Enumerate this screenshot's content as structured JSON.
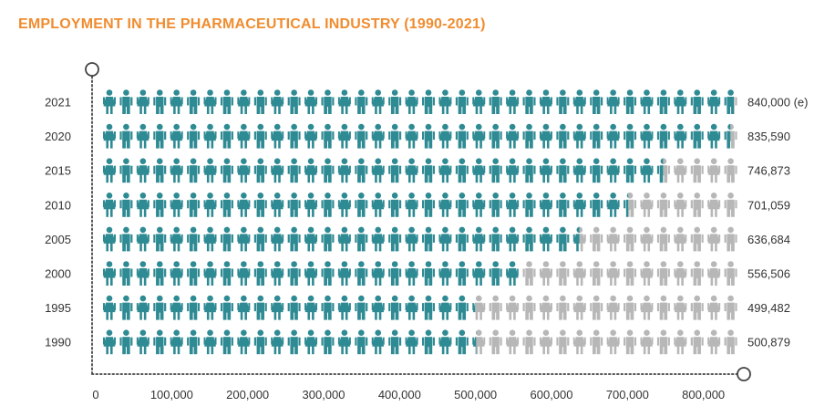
{
  "chart_data": {
    "type": "bar",
    "title": "EMPLOYMENT IN THE PHARMACEUTICAL INDUSTRY (1990-2021)",
    "title_color": "#f08c2f",
    "colors": {
      "filled": "#2e8a93",
      "empty": "#b7b7b7",
      "axis": "#555555"
    },
    "orientation": "horizontal",
    "categories": [
      "2021",
      "2020",
      "2015",
      "2010",
      "2005",
      "2000",
      "1995",
      "1990"
    ],
    "values": [
      840000,
      835590,
      746873,
      701059,
      636684,
      556506,
      499482,
      500879
    ],
    "value_labels": [
      "840,000 (e)",
      "835,590",
      "746,873",
      "701,059",
      "636,684",
      "556,506",
      "499,482",
      "500,879"
    ],
    "x_ticks": [
      0,
      100000,
      200000,
      300000,
      400000,
      500000,
      600000,
      700000,
      800000
    ],
    "x_tick_labels": [
      "0",
      "100,000",
      "200,000",
      "300,000",
      "400,000",
      "500,000",
      "600,000",
      "700,000",
      "800,000"
    ],
    "xlim": [
      0,
      840000
    ],
    "units_per_icon": 20000,
    "icons_per_row": 38,
    "icon_style": "alternating-female-male",
    "grid": false
  }
}
